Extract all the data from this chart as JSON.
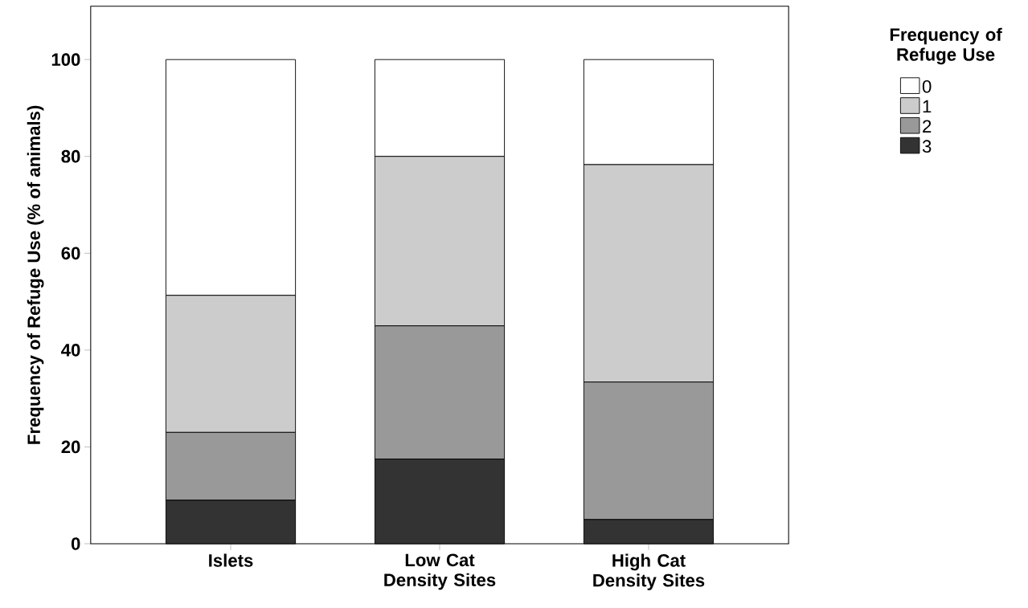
{
  "chart_data": {
    "type": "bar",
    "stacked": true,
    "ylabel": "Frequency of Refuge Use (% of animals)",
    "legend_title": "Frequency of Refuge Use",
    "categories": [
      "Islets",
      "Low Cat Density Sites",
      "High Cat Density Sites"
    ],
    "series": [
      {
        "name": "3",
        "color": "#333333",
        "values": [
          9,
          17.5,
          5
        ]
      },
      {
        "name": "2",
        "color": "#999999",
        "values": [
          14,
          27.5,
          28.4
        ]
      },
      {
        "name": "1",
        "color": "#cccccc",
        "values": [
          28.3,
          35,
          44.9
        ]
      },
      {
        "name": "0",
        "color": "#ffffff",
        "values": [
          48.7,
          20,
          21.7
        ]
      }
    ],
    "ylim": [
      0,
      111
    ],
    "yticks": [
      0,
      20,
      40,
      60,
      80,
      100
    ],
    "grid": false,
    "legend": "right"
  }
}
